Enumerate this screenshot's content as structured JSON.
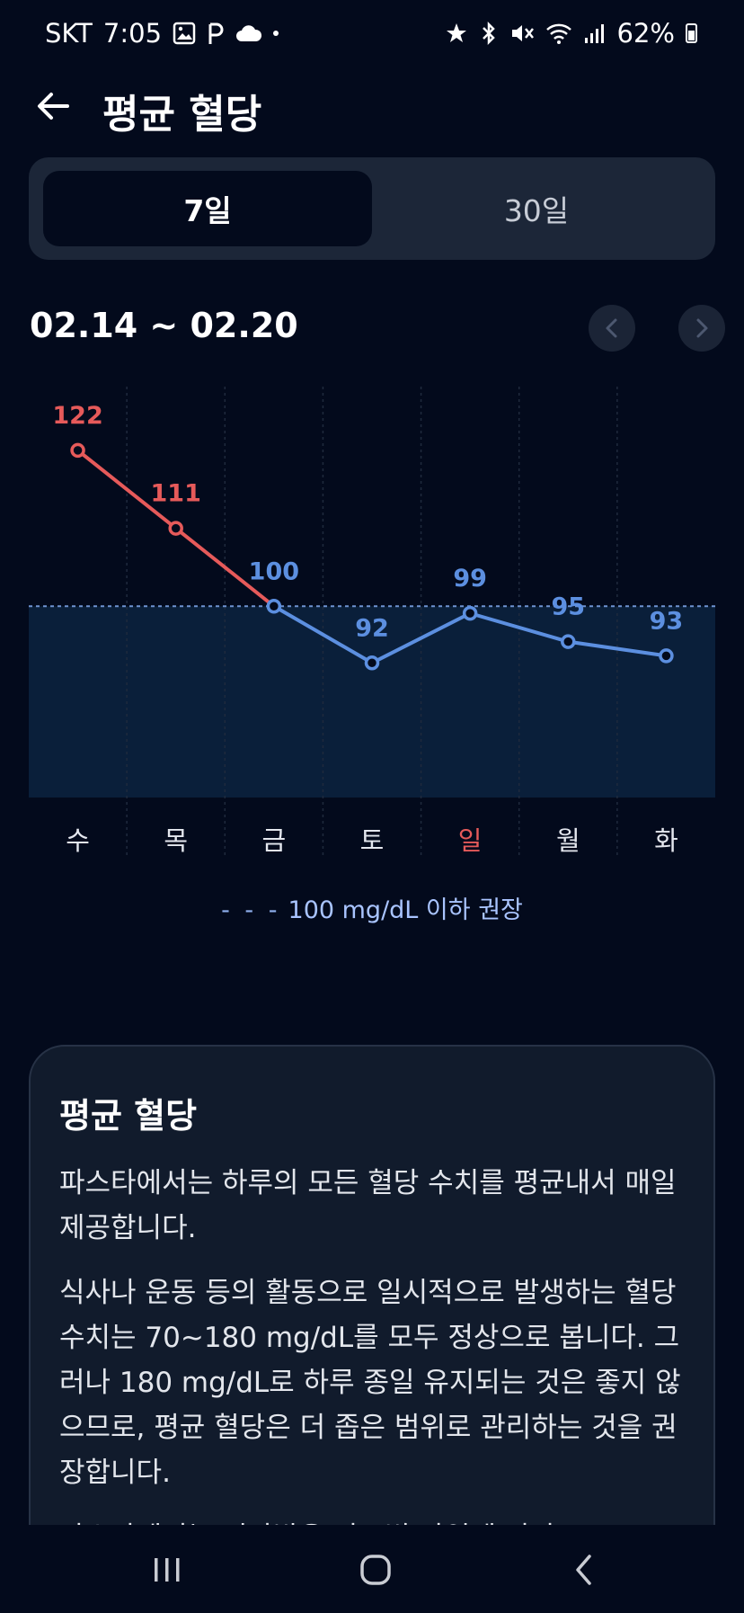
{
  "status_bar": {
    "carrier": "SKT",
    "time": "7:05",
    "left_icons": [
      "gallery-icon",
      "p-icon",
      "cloud-icon",
      "dot-icon"
    ],
    "right_icons": [
      "star-icon",
      "bluetooth-icon",
      "mute-icon",
      "wifi-icon",
      "signal-icon"
    ],
    "battery": "62%"
  },
  "header": {
    "title": "평균 혈당"
  },
  "segment": {
    "tabs": [
      {
        "label": "7일",
        "active": true
      },
      {
        "label": "30일",
        "active": false
      }
    ]
  },
  "date_range": "02.14 ~ 02.20",
  "chart_data": {
    "type": "line",
    "categories": [
      "수",
      "목",
      "금",
      "토",
      "일",
      "월",
      "화"
    ],
    "values": [
      122,
      111,
      100,
      92,
      99,
      95,
      93
    ],
    "value_labels": [
      "122",
      "111",
      "100",
      "92",
      "99",
      "95",
      "93"
    ],
    "threshold": 100,
    "ylim": [
      73,
      131
    ],
    "grid_vertical": true,
    "colors": {
      "above": "#e65a5a",
      "below": "#5c8fe0",
      "zone": "#0a1f3a",
      "threshold_line": "#6f93d1",
      "sunday": "#e65a5a",
      "day_label": "#e4e7ee"
    },
    "legend": "100 mg/dL 이하 권장"
  },
  "info": {
    "title": "평균 혈당",
    "paragraphs": [
      "파스타에서는 하루의 모든 혈당 수치를 평균내서 매일 제공합니다.",
      "식사나 운동 등의 활동으로 일시적으로 발생하는 혈당 수치는 70~180 mg/dL를 모두 정상으로 봅니다. 그러나 180 mg/dL로 하루 종일 유지되는 것은 좋지 않으므로, 평균 혈당은 더 좁은 범위로 관리하는 것을 권장합니다.",
      "파스타에서는 진단받은 당뇨병 타입에 따라"
    ]
  },
  "nav_bar": {
    "items": [
      "recent-apps-icon",
      "home-icon",
      "back-icon"
    ]
  }
}
